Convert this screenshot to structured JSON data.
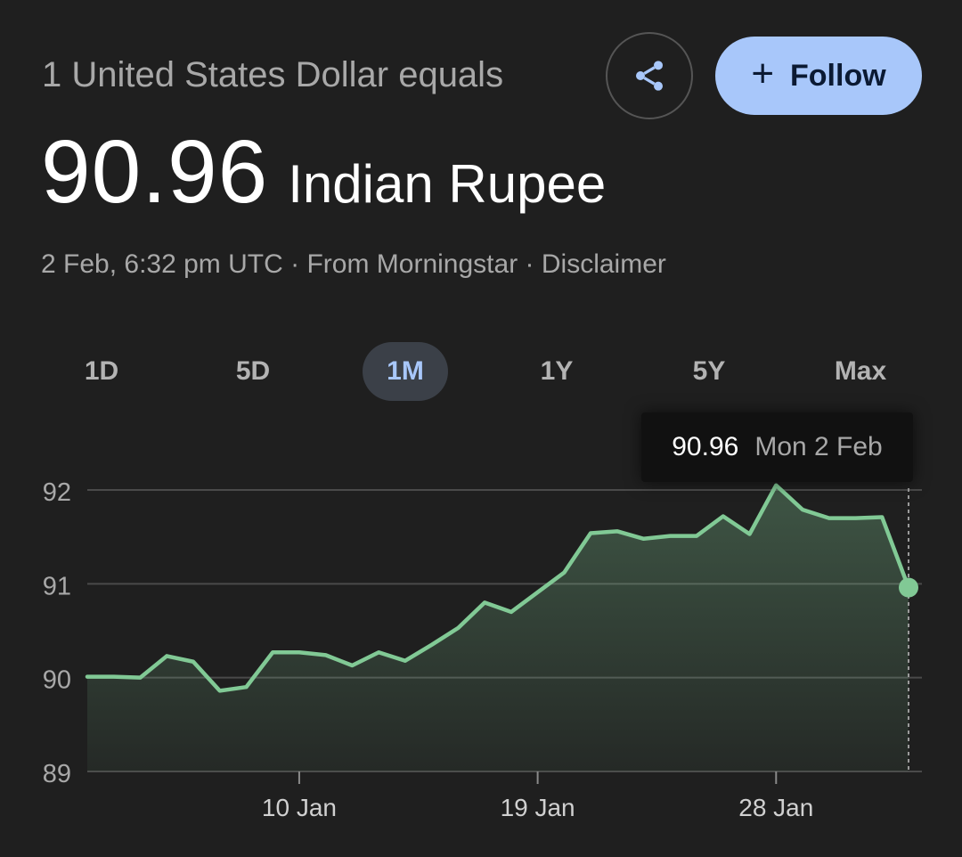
{
  "header": {
    "subtitle": "1 United States Dollar equals",
    "rate": "90.96",
    "currency": "Indian Rupee",
    "follow_label": "Follow",
    "share_icon": "share-icon",
    "follow_icon": "plus-icon"
  },
  "meta": {
    "timestamp": "2 Feb, 6:32 pm UTC",
    "separator": "·",
    "source": "From Morningstar",
    "disclaimer": "Disclaimer"
  },
  "tabs": [
    {
      "label": "1D",
      "active": false
    },
    {
      "label": "5D",
      "active": false
    },
    {
      "label": "1M",
      "active": true
    },
    {
      "label": "1Y",
      "active": false
    },
    {
      "label": "5Y",
      "active": false
    },
    {
      "label": "Max",
      "active": false
    }
  ],
  "tooltip": {
    "value": "90.96",
    "date": "Mon 2 Feb"
  },
  "colors": {
    "background": "#1f1f1f",
    "line": "#81c995",
    "accent": "#a8c7fa",
    "grid": "#4a4a4a"
  },
  "chart_data": {
    "type": "area",
    "title": "",
    "xlabel": "",
    "ylabel": "",
    "ylim": [
      89,
      92
    ],
    "yticks": [
      89,
      90,
      91,
      92
    ],
    "xtick_labels": [
      {
        "label": "10 Jan",
        "index": 8
      },
      {
        "label": "19 Jan",
        "index": 17
      },
      {
        "label": "28 Jan",
        "index": 26
      }
    ],
    "grid": true,
    "series": [
      {
        "values": [
          90.01,
          90.01,
          90.0,
          90.23,
          90.17,
          89.86,
          89.9,
          90.27,
          90.27,
          90.24,
          90.13,
          90.27,
          90.18,
          90.35,
          90.53,
          90.8,
          90.7,
          90.91,
          91.12,
          91.54,
          91.56,
          91.48,
          91.51,
          91.51,
          91.72,
          91.53,
          92.05,
          91.79,
          91.7,
          91.7,
          91.71,
          90.96
        ]
      }
    ],
    "highlight": {
      "index": 31,
      "value": 90.96,
      "date": "Mon 2 Feb"
    }
  }
}
